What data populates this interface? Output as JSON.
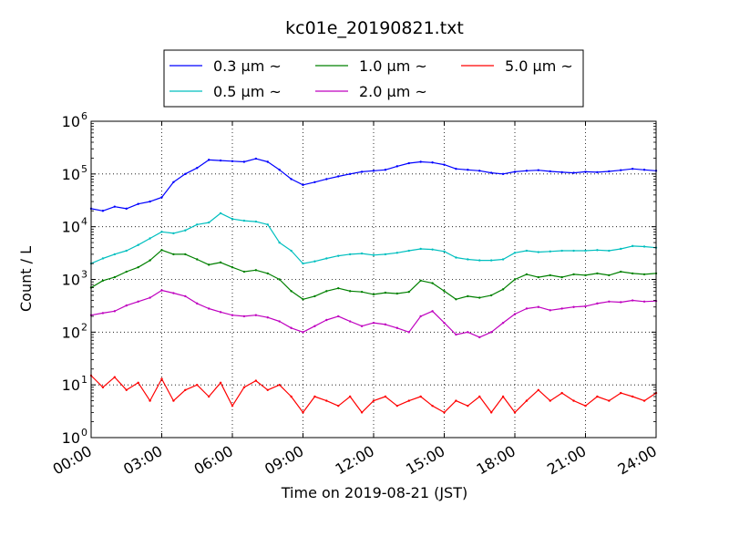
{
  "chart_data": {
    "type": "line",
    "title": "kc01e_20190821.txt",
    "xlabel": "Time on 2019-08-21 (JST)",
    "ylabel": "Count / L",
    "xlim": [
      "00:00",
      "24:00"
    ],
    "ylim": [
      1,
      1000000
    ],
    "y_scale": "log",
    "grid": true,
    "legend_placement": "top-center",
    "x_ticks": [
      "00:00",
      "03:00",
      "06:00",
      "09:00",
      "12:00",
      "15:00",
      "18:00",
      "21:00",
      "24:00"
    ],
    "y_ticks": [
      {
        "base": "10",
        "exp": "0"
      },
      {
        "base": "10",
        "exp": "1"
      },
      {
        "base": "10",
        "exp": "2"
      },
      {
        "base": "10",
        "exp": "3"
      },
      {
        "base": "10",
        "exp": "4"
      },
      {
        "base": "10",
        "exp": "5"
      },
      {
        "base": "10",
        "exp": "6"
      }
    ],
    "series": [
      {
        "name": "0.3 μm ~",
        "color": "#0000ff",
        "points": [
          [
            "00:00",
            22000
          ],
          [
            "00:30",
            20000
          ],
          [
            "01:00",
            24000
          ],
          [
            "01:30",
            22000
          ],
          [
            "02:00",
            27000
          ],
          [
            "02:30",
            30000
          ],
          [
            "03:00",
            36000
          ],
          [
            "03:30",
            70000
          ],
          [
            "04:00",
            100000
          ],
          [
            "04:30",
            130000
          ],
          [
            "05:00",
            185000
          ],
          [
            "05:30",
            180000
          ],
          [
            "06:00",
            175000
          ],
          [
            "06:30",
            170000
          ],
          [
            "07:00",
            195000
          ],
          [
            "07:30",
            170000
          ],
          [
            "08:00",
            120000
          ],
          [
            "08:30",
            80000
          ],
          [
            "09:00",
            62000
          ],
          [
            "09:30",
            70000
          ],
          [
            "10:00",
            80000
          ],
          [
            "10:30",
            90000
          ],
          [
            "11:00",
            100000
          ],
          [
            "11:30",
            110000
          ],
          [
            "12:00",
            115000
          ],
          [
            "12:30",
            120000
          ],
          [
            "13:00",
            140000
          ],
          [
            "13:30",
            160000
          ],
          [
            "14:00",
            170000
          ],
          [
            "14:30",
            165000
          ],
          [
            "15:00",
            150000
          ],
          [
            "15:30",
            125000
          ],
          [
            "16:00",
            120000
          ],
          [
            "16:30",
            115000
          ],
          [
            "17:00",
            105000
          ],
          [
            "17:30",
            100000
          ],
          [
            "18:00",
            110000
          ],
          [
            "18:30",
            115000
          ],
          [
            "19:00",
            118000
          ],
          [
            "19:30",
            112000
          ],
          [
            "20:00",
            108000
          ],
          [
            "20:30",
            105000
          ],
          [
            "21:00",
            110000
          ],
          [
            "21:30",
            108000
          ],
          [
            "22:00",
            112000
          ],
          [
            "22:30",
            118000
          ],
          [
            "23:00",
            125000
          ],
          [
            "23:30",
            120000
          ],
          [
            "24:00",
            115000
          ]
        ]
      },
      {
        "name": "0.5 μm ~",
        "color": "#00bfbf",
        "points": [
          [
            "00:00",
            2000
          ],
          [
            "00:30",
            2500
          ],
          [
            "01:00",
            3000
          ],
          [
            "01:30",
            3500
          ],
          [
            "02:00",
            4500
          ],
          [
            "02:30",
            6000
          ],
          [
            "03:00",
            8000
          ],
          [
            "03:30",
            7500
          ],
          [
            "04:00",
            8500
          ],
          [
            "04:30",
            11000
          ],
          [
            "05:00",
            12000
          ],
          [
            "05:30",
            18000
          ],
          [
            "06:00",
            14000
          ],
          [
            "06:30",
            13000
          ],
          [
            "07:00",
            12500
          ],
          [
            "07:30",
            11000
          ],
          [
            "08:00",
            5000
          ],
          [
            "08:30",
            3500
          ],
          [
            "09:00",
            2000
          ],
          [
            "09:30",
            2200
          ],
          [
            "10:00",
            2500
          ],
          [
            "10:30",
            2800
          ],
          [
            "11:00",
            3000
          ],
          [
            "11:30",
            3100
          ],
          [
            "12:00",
            2900
          ],
          [
            "12:30",
            3000
          ],
          [
            "13:00",
            3200
          ],
          [
            "13:30",
            3500
          ],
          [
            "14:00",
            3800
          ],
          [
            "14:30",
            3700
          ],
          [
            "15:00",
            3400
          ],
          [
            "15:30",
            2600
          ],
          [
            "16:00",
            2400
          ],
          [
            "16:30",
            2300
          ],
          [
            "17:00",
            2300
          ],
          [
            "17:30",
            2400
          ],
          [
            "18:00",
            3200
          ],
          [
            "18:30",
            3500
          ],
          [
            "19:00",
            3300
          ],
          [
            "19:30",
            3400
          ],
          [
            "20:00",
            3500
          ],
          [
            "20:30",
            3500
          ],
          [
            "21:00",
            3500
          ],
          [
            "21:30",
            3600
          ],
          [
            "22:00",
            3500
          ],
          [
            "22:30",
            3800
          ],
          [
            "23:00",
            4300
          ],
          [
            "23:30",
            4200
          ],
          [
            "24:00",
            4000
          ]
        ]
      },
      {
        "name": "1.0 μm ~",
        "color": "#008000",
        "points": [
          [
            "00:00",
            700
          ],
          [
            "00:30",
            950
          ],
          [
            "01:00",
            1100
          ],
          [
            "01:30",
            1400
          ],
          [
            "02:00",
            1700
          ],
          [
            "02:30",
            2300
          ],
          [
            "03:00",
            3600
          ],
          [
            "03:30",
            3000
          ],
          [
            "04:00",
            3000
          ],
          [
            "04:30",
            2400
          ],
          [
            "05:00",
            1900
          ],
          [
            "05:30",
            2100
          ],
          [
            "06:00",
            1700
          ],
          [
            "06:30",
            1400
          ],
          [
            "07:00",
            1500
          ],
          [
            "07:30",
            1300
          ],
          [
            "08:00",
            1000
          ],
          [
            "08:30",
            600
          ],
          [
            "09:00",
            420
          ],
          [
            "09:30",
            480
          ],
          [
            "10:00",
            600
          ],
          [
            "10:30",
            680
          ],
          [
            "11:00",
            600
          ],
          [
            "11:30",
            580
          ],
          [
            "12:00",
            520
          ],
          [
            "12:30",
            560
          ],
          [
            "13:00",
            540
          ],
          [
            "13:30",
            580
          ],
          [
            "14:00",
            950
          ],
          [
            "14:30",
            850
          ],
          [
            "15:00",
            600
          ],
          [
            "15:30",
            420
          ],
          [
            "16:00",
            480
          ],
          [
            "16:30",
            450
          ],
          [
            "17:00",
            500
          ],
          [
            "17:30",
            650
          ],
          [
            "18:00",
            1000
          ],
          [
            "18:30",
            1250
          ],
          [
            "19:00",
            1100
          ],
          [
            "19:30",
            1200
          ],
          [
            "20:00",
            1100
          ],
          [
            "20:30",
            1250
          ],
          [
            "21:00",
            1200
          ],
          [
            "21:30",
            1300
          ],
          [
            "22:00",
            1200
          ],
          [
            "22:30",
            1400
          ],
          [
            "23:00",
            1300
          ],
          [
            "23:30",
            1250
          ],
          [
            "24:00",
            1300
          ]
        ]
      },
      {
        "name": "2.0 μm ~",
        "color": "#bf00bf",
        "points": [
          [
            "00:00",
            210
          ],
          [
            "00:30",
            230
          ],
          [
            "01:00",
            250
          ],
          [
            "01:30",
            320
          ],
          [
            "02:00",
            380
          ],
          [
            "02:30",
            450
          ],
          [
            "03:00",
            620
          ],
          [
            "03:30",
            550
          ],
          [
            "04:00",
            480
          ],
          [
            "04:30",
            350
          ],
          [
            "05:00",
            280
          ],
          [
            "05:30",
            240
          ],
          [
            "06:00",
            210
          ],
          [
            "06:30",
            200
          ],
          [
            "07:00",
            210
          ],
          [
            "07:30",
            190
          ],
          [
            "08:00",
            160
          ],
          [
            "08:30",
            120
          ],
          [
            "09:00",
            100
          ],
          [
            "09:30",
            130
          ],
          [
            "10:00",
            170
          ],
          [
            "10:30",
            200
          ],
          [
            "11:00",
            160
          ],
          [
            "11:30",
            130
          ],
          [
            "12:00",
            150
          ],
          [
            "12:30",
            140
          ],
          [
            "13:00",
            120
          ],
          [
            "13:30",
            100
          ],
          [
            "14:00",
            200
          ],
          [
            "14:30",
            250
          ],
          [
            "15:00",
            150
          ],
          [
            "15:30",
            90
          ],
          [
            "16:00",
            100
          ],
          [
            "16:30",
            80
          ],
          [
            "17:00",
            100
          ],
          [
            "17:30",
            150
          ],
          [
            "18:00",
            220
          ],
          [
            "18:30",
            280
          ],
          [
            "19:00",
            300
          ],
          [
            "19:30",
            260
          ],
          [
            "20:00",
            280
          ],
          [
            "20:30",
            300
          ],
          [
            "21:00",
            310
          ],
          [
            "21:30",
            350
          ],
          [
            "22:00",
            380
          ],
          [
            "22:30",
            370
          ],
          [
            "23:00",
            400
          ],
          [
            "23:30",
            380
          ],
          [
            "24:00",
            390
          ]
        ]
      },
      {
        "name": "5.0 μm ~",
        "color": "#ff0000",
        "points": [
          [
            "00:00",
            15
          ],
          [
            "00:30",
            9
          ],
          [
            "01:00",
            14
          ],
          [
            "01:30",
            8
          ],
          [
            "02:00",
            11
          ],
          [
            "02:30",
            5
          ],
          [
            "03:00",
            13
          ],
          [
            "03:30",
            5
          ],
          [
            "04:00",
            8
          ],
          [
            "04:30",
            10
          ],
          [
            "05:00",
            6
          ],
          [
            "05:30",
            11
          ],
          [
            "06:00",
            4
          ],
          [
            "06:30",
            9
          ],
          [
            "07:00",
            12
          ],
          [
            "07:30",
            8
          ],
          [
            "08:00",
            10
          ],
          [
            "08:30",
            6
          ],
          [
            "09:00",
            3
          ],
          [
            "09:30",
            6
          ],
          [
            "10:00",
            5
          ],
          [
            "10:30",
            4
          ],
          [
            "11:00",
            6
          ],
          [
            "11:30",
            3
          ],
          [
            "12:00",
            5
          ],
          [
            "12:30",
            6
          ],
          [
            "13:00",
            4
          ],
          [
            "13:30",
            5
          ],
          [
            "14:00",
            6
          ],
          [
            "14:30",
            4
          ],
          [
            "15:00",
            3
          ],
          [
            "15:30",
            5
          ],
          [
            "16:00",
            4
          ],
          [
            "16:30",
            6
          ],
          [
            "17:00",
            3
          ],
          [
            "17:30",
            6
          ],
          [
            "18:00",
            3
          ],
          [
            "18:30",
            5
          ],
          [
            "19:00",
            8
          ],
          [
            "19:30",
            5
          ],
          [
            "20:00",
            7
          ],
          [
            "20:30",
            5
          ],
          [
            "21:00",
            4
          ],
          [
            "21:30",
            6
          ],
          [
            "22:00",
            5
          ],
          [
            "22:30",
            7
          ],
          [
            "23:00",
            6
          ],
          [
            "23:30",
            5
          ],
          [
            "24:00",
            7
          ]
        ]
      }
    ]
  }
}
